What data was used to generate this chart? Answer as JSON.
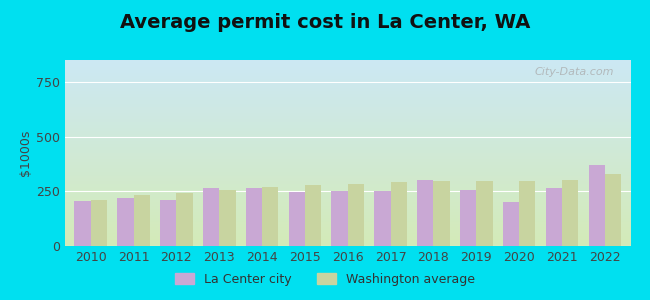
{
  "title": "Average permit cost in La Center, WA",
  "ylabel": "$1000s",
  "years": [
    2010,
    2011,
    2012,
    2013,
    2014,
    2015,
    2016,
    2017,
    2018,
    2019,
    2020,
    2021,
    2022
  ],
  "la_center": [
    205,
    220,
    210,
    265,
    265,
    248,
    250,
    253,
    300,
    258,
    200,
    265,
    370
  ],
  "wa_average": [
    208,
    235,
    242,
    257,
    270,
    278,
    285,
    292,
    295,
    297,
    298,
    303,
    330
  ],
  "bar_color_city": "#c9a8d4",
  "bar_color_wa": "#c8d4a0",
  "legend_city": "La Center city",
  "legend_wa": "Washington average",
  "ylim": [
    0,
    850
  ],
  "yticks": [
    0,
    250,
    500,
    750
  ],
  "background_outer": "#00e0f0",
  "background_inner_top": "#cce8f4",
  "background_inner_bottom": "#d4ebb8",
  "title_fontsize": 14,
  "axis_fontsize": 9,
  "legend_fontsize": 9,
  "bar_width": 0.38,
  "watermark": "City-Data.com"
}
